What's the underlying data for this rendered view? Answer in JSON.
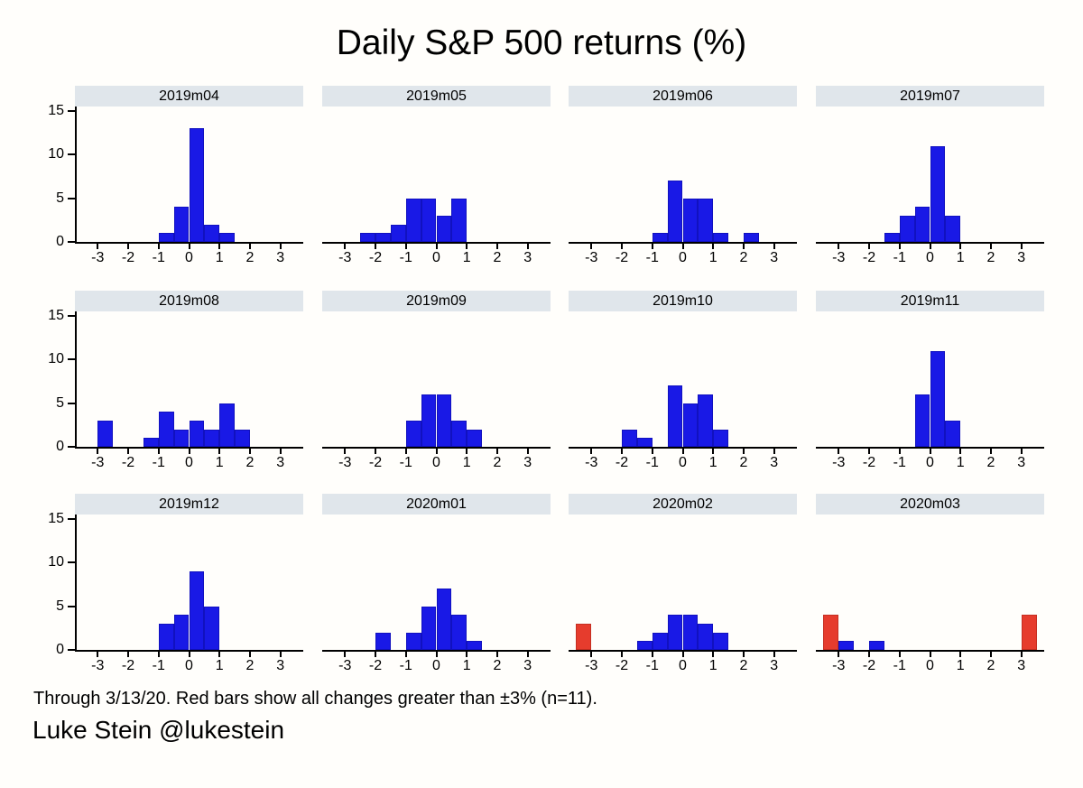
{
  "title": "Daily S&P 500 returns (%)",
  "footer": {
    "note": "Through 3/13/20. Red bars show all changes greater than ±3% (n=11).",
    "credit": "Luke Stein @lukestein"
  },
  "colors": {
    "bar_blue": "#1919e6",
    "bar_red": "#e63c2d",
    "header_strip": "#e0e6eb",
    "axis": "#000000"
  },
  "chart_data": {
    "type": "bar",
    "subtype": "histogram-small-multiples",
    "title": "Daily S&P 500 returns (%)",
    "xlabel": "",
    "ylabel": "",
    "bin_width": 0.5,
    "xlim": [
      -3.75,
      3.75
    ],
    "ylim": [
      0,
      15.5
    ],
    "x_ticks": [
      -3,
      -2,
      -1,
      0,
      1,
      2,
      3
    ],
    "y_ticks": [
      0,
      5,
      10,
      15
    ],
    "grid": false,
    "legend": false,
    "panels": [
      {
        "label": "2019m04",
        "bars": [
          {
            "start": -1.0,
            "count": 1,
            "color": "blue"
          },
          {
            "start": -0.5,
            "count": 4,
            "color": "blue"
          },
          {
            "start": 0.0,
            "count": 13,
            "color": "blue"
          },
          {
            "start": 0.5,
            "count": 2,
            "color": "blue"
          },
          {
            "start": 1.0,
            "count": 1,
            "color": "blue"
          }
        ]
      },
      {
        "label": "2019m05",
        "bars": [
          {
            "start": -2.5,
            "count": 1,
            "color": "blue"
          },
          {
            "start": -2.0,
            "count": 1,
            "color": "blue"
          },
          {
            "start": -1.5,
            "count": 2,
            "color": "blue"
          },
          {
            "start": -1.0,
            "count": 5,
            "color": "blue"
          },
          {
            "start": -0.5,
            "count": 5,
            "color": "blue"
          },
          {
            "start": 0.0,
            "count": 3,
            "color": "blue"
          },
          {
            "start": 0.5,
            "count": 5,
            "color": "blue"
          }
        ]
      },
      {
        "label": "2019m06",
        "bars": [
          {
            "start": -1.0,
            "count": 1,
            "color": "blue"
          },
          {
            "start": -0.5,
            "count": 7,
            "color": "blue"
          },
          {
            "start": 0.0,
            "count": 5,
            "color": "blue"
          },
          {
            "start": 0.5,
            "count": 5,
            "color": "blue"
          },
          {
            "start": 1.0,
            "count": 1,
            "color": "blue"
          },
          {
            "start": 2.0,
            "count": 1,
            "color": "blue"
          }
        ]
      },
      {
        "label": "2019m07",
        "bars": [
          {
            "start": -1.5,
            "count": 1,
            "color": "blue"
          },
          {
            "start": -1.0,
            "count": 3,
            "color": "blue"
          },
          {
            "start": -0.5,
            "count": 4,
            "color": "blue"
          },
          {
            "start": 0.0,
            "count": 11,
            "color": "blue"
          },
          {
            "start": 0.5,
            "count": 3,
            "color": "blue"
          }
        ]
      },
      {
        "label": "2019m08",
        "bars": [
          {
            "start": -3.0,
            "count": 3,
            "color": "blue"
          },
          {
            "start": -1.5,
            "count": 1,
            "color": "blue"
          },
          {
            "start": -1.0,
            "count": 4,
            "color": "blue"
          },
          {
            "start": -0.5,
            "count": 2,
            "color": "blue"
          },
          {
            "start": 0.0,
            "count": 3,
            "color": "blue"
          },
          {
            "start": 0.5,
            "count": 2,
            "color": "blue"
          },
          {
            "start": 1.0,
            "count": 5,
            "color": "blue"
          },
          {
            "start": 1.5,
            "count": 2,
            "color": "blue"
          }
        ]
      },
      {
        "label": "2019m09",
        "bars": [
          {
            "start": -1.0,
            "count": 3,
            "color": "blue"
          },
          {
            "start": -0.5,
            "count": 6,
            "color": "blue"
          },
          {
            "start": 0.0,
            "count": 6,
            "color": "blue"
          },
          {
            "start": 0.5,
            "count": 3,
            "color": "blue"
          },
          {
            "start": 1.0,
            "count": 2,
            "color": "blue"
          }
        ]
      },
      {
        "label": "2019m10",
        "bars": [
          {
            "start": -2.0,
            "count": 2,
            "color": "blue"
          },
          {
            "start": -1.5,
            "count": 1,
            "color": "blue"
          },
          {
            "start": -0.5,
            "count": 7,
            "color": "blue"
          },
          {
            "start": 0.0,
            "count": 5,
            "color": "blue"
          },
          {
            "start": 0.5,
            "count": 6,
            "color": "blue"
          },
          {
            "start": 1.0,
            "count": 2,
            "color": "blue"
          }
        ]
      },
      {
        "label": "2019m11",
        "bars": [
          {
            "start": -0.5,
            "count": 6,
            "color": "blue"
          },
          {
            "start": 0.0,
            "count": 11,
            "color": "blue"
          },
          {
            "start": 0.5,
            "count": 3,
            "color": "blue"
          }
        ]
      },
      {
        "label": "2019m12",
        "bars": [
          {
            "start": -1.0,
            "count": 3,
            "color": "blue"
          },
          {
            "start": -0.5,
            "count": 4,
            "color": "blue"
          },
          {
            "start": 0.0,
            "count": 9,
            "color": "blue"
          },
          {
            "start": 0.5,
            "count": 5,
            "color": "blue"
          }
        ]
      },
      {
        "label": "2020m01",
        "bars": [
          {
            "start": -2.0,
            "count": 2,
            "color": "blue"
          },
          {
            "start": -1.0,
            "count": 2,
            "color": "blue"
          },
          {
            "start": -0.5,
            "count": 5,
            "color": "blue"
          },
          {
            "start": 0.0,
            "count": 7,
            "color": "blue"
          },
          {
            "start": 0.5,
            "count": 4,
            "color": "blue"
          },
          {
            "start": 1.0,
            "count": 1,
            "color": "blue"
          }
        ]
      },
      {
        "label": "2020m02",
        "bars": [
          {
            "start": -3.5,
            "count": 3,
            "color": "red"
          },
          {
            "start": -1.5,
            "count": 1,
            "color": "blue"
          },
          {
            "start": -1.0,
            "count": 2,
            "color": "blue"
          },
          {
            "start": -0.5,
            "count": 4,
            "color": "blue"
          },
          {
            "start": 0.0,
            "count": 4,
            "color": "blue"
          },
          {
            "start": 0.5,
            "count": 3,
            "color": "blue"
          },
          {
            "start": 1.0,
            "count": 2,
            "color": "blue"
          }
        ]
      },
      {
        "label": "2020m03",
        "bars": [
          {
            "start": -3.5,
            "count": 4,
            "color": "red"
          },
          {
            "start": -3.0,
            "count": 1,
            "color": "blue"
          },
          {
            "start": -2.0,
            "count": 1,
            "color": "blue"
          },
          {
            "start": 3.0,
            "count": 4,
            "color": "red"
          }
        ]
      }
    ]
  }
}
